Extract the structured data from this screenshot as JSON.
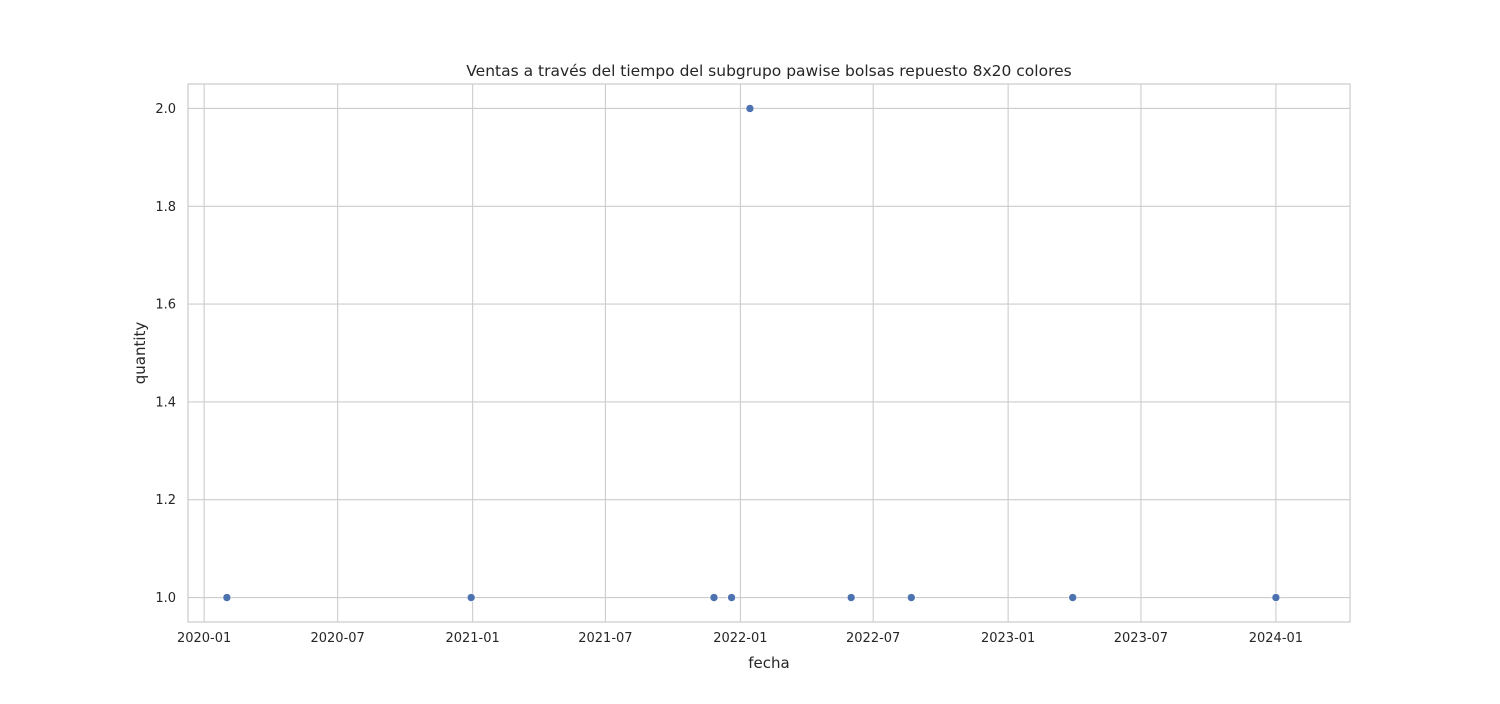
{
  "chart_data": {
    "type": "scatter",
    "title": "Ventas a través del tiempo del subgrupo pawise bolsas repuesto 8x20 colores",
    "xlabel": "fecha",
    "ylabel": "quantity",
    "x_axis_type": "date",
    "xlim": [
      "2019-12-10",
      "2024-04-11"
    ],
    "ylim": [
      0.95,
      2.05
    ],
    "x_ticks": [
      "2020-01",
      "2020-07",
      "2021-01",
      "2021-07",
      "2022-01",
      "2022-07",
      "2023-01",
      "2023-07",
      "2024-01"
    ],
    "y_ticks": [
      "1.0",
      "1.2",
      "1.4",
      "1.6",
      "1.8",
      "2.0"
    ],
    "grid": true,
    "marker_color": "#4c72b0",
    "series": [
      {
        "points": [
          {
            "x": "2020-02-01",
            "y": 1.0
          },
          {
            "x": "2020-12-30",
            "y": 1.0
          },
          {
            "x": "2021-11-26",
            "y": 1.0
          },
          {
            "x": "2021-12-20",
            "y": 1.0
          },
          {
            "x": "2022-01-14",
            "y": 2.0
          },
          {
            "x": "2022-06-01",
            "y": 1.0
          },
          {
            "x": "2022-08-22",
            "y": 1.0
          },
          {
            "x": "2023-03-30",
            "y": 1.0
          },
          {
            "x": "2024-01-01",
            "y": 1.0
          }
        ]
      }
    ]
  }
}
